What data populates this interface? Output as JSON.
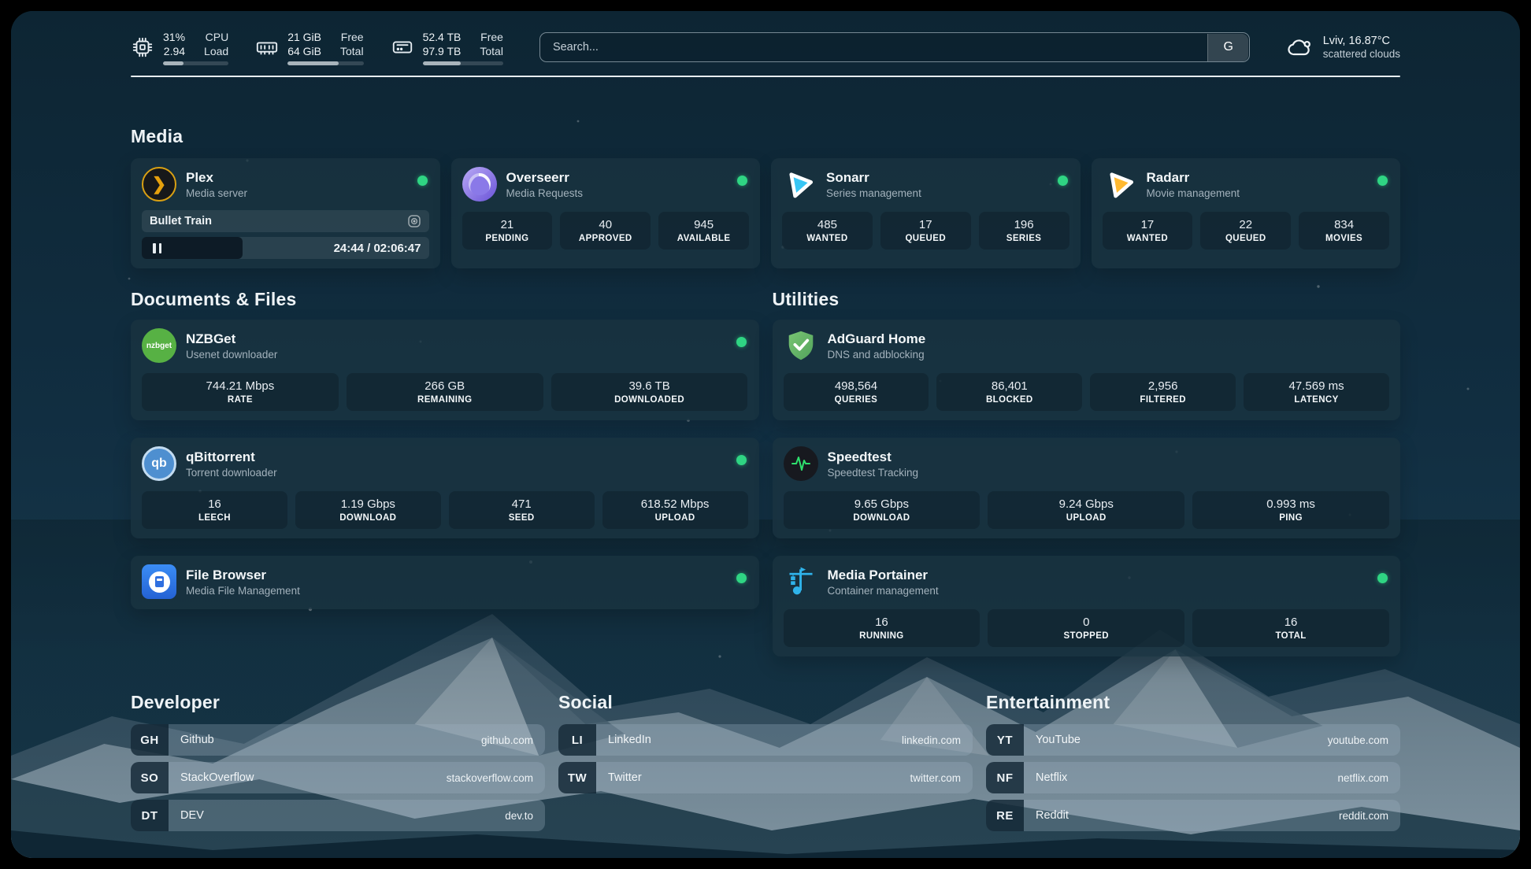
{
  "topbar": {
    "cpu": {
      "percent": "31%",
      "load": "2.94",
      "label_top": "CPU",
      "label_bottom": "Load",
      "progress": 31
    },
    "memory": {
      "free": "21 GiB",
      "total": "64 GiB",
      "label_top": "Free",
      "label_bottom": "Total",
      "progress": 67
    },
    "disk": {
      "free": "52.4 TB",
      "total": "97.9 TB",
      "label_top": "Free",
      "label_bottom": "Total",
      "progress": 47
    },
    "search": {
      "placeholder": "Search...",
      "provider_button": "G"
    },
    "weather": {
      "location_temp": "Lviv, 16.87°C",
      "condition": "scattered clouds"
    }
  },
  "media": {
    "title": "Media",
    "plex": {
      "name": "Plex",
      "description": "Media server",
      "now_playing": "Bullet Train",
      "time": "24:44 / 02:06:47"
    },
    "overseerr": {
      "name": "Overseerr",
      "description": "Media Requests",
      "stats": [
        {
          "value": "21",
          "label": "PENDING"
        },
        {
          "value": "40",
          "label": "APPROVED"
        },
        {
          "value": "945",
          "label": "AVAILABLE"
        }
      ]
    },
    "sonarr": {
      "name": "Sonarr",
      "description": "Series management",
      "stats": [
        {
          "value": "485",
          "label": "WANTED"
        },
        {
          "value": "17",
          "label": "QUEUED"
        },
        {
          "value": "196",
          "label": "SERIES"
        }
      ]
    },
    "radarr": {
      "name": "Radarr",
      "description": "Movie management",
      "stats": [
        {
          "value": "17",
          "label": "WANTED"
        },
        {
          "value": "22",
          "label": "QUEUED"
        },
        {
          "value": "834",
          "label": "MOVIES"
        }
      ]
    }
  },
  "documents": {
    "title": "Documents & Files",
    "nzbget": {
      "name": "NZBGet",
      "description": "Usenet downloader",
      "badge": "nzbget",
      "stats": [
        {
          "value": "744.21 Mbps",
          "label": "RATE"
        },
        {
          "value": "266 GB",
          "label": "REMAINING"
        },
        {
          "value": "39.6 TB",
          "label": "DOWNLOADED"
        }
      ]
    },
    "qbittorrent": {
      "name": "qBittorrent",
      "description": "Torrent downloader",
      "badge": "qb",
      "stats": [
        {
          "value": "16",
          "label": "LEECH"
        },
        {
          "value": "1.19 Gbps",
          "label": "DOWNLOAD"
        },
        {
          "value": "471",
          "label": "SEED"
        },
        {
          "value": "618.52 Mbps",
          "label": "UPLOAD"
        }
      ]
    },
    "filebrowser": {
      "name": "File Browser",
      "description": "Media File Management"
    }
  },
  "utilities": {
    "title": "Utilities",
    "adguard": {
      "name": "AdGuard Home",
      "description": "DNS and adblocking",
      "stats": [
        {
          "value": "498,564",
          "label": "QUERIES"
        },
        {
          "value": "86,401",
          "label": "BLOCKED"
        },
        {
          "value": "2,956",
          "label": "FILTERED"
        },
        {
          "value": "47.569 ms",
          "label": "LATENCY"
        }
      ]
    },
    "speedtest": {
      "name": "Speedtest",
      "description": "Speedtest Tracking",
      "stats": [
        {
          "value": "9.65 Gbps",
          "label": "DOWNLOAD"
        },
        {
          "value": "9.24 Gbps",
          "label": "UPLOAD"
        },
        {
          "value": "0.993 ms",
          "label": "PING"
        }
      ]
    },
    "portainer": {
      "name": "Media Portainer",
      "description": "Container management",
      "stats": [
        {
          "value": "16",
          "label": "RUNNING"
        },
        {
          "value": "0",
          "label": "STOPPED"
        },
        {
          "value": "16",
          "label": "TOTAL"
        }
      ]
    }
  },
  "bookmarks": {
    "developer": {
      "title": "Developer",
      "links": [
        {
          "abbr": "GH",
          "name": "Github",
          "domain": "github.com"
        },
        {
          "abbr": "SO",
          "name": "StackOverflow",
          "domain": "stackoverflow.com"
        },
        {
          "abbr": "DT",
          "name": "DEV",
          "domain": "dev.to"
        }
      ]
    },
    "social": {
      "title": "Social",
      "links": [
        {
          "abbr": "LI",
          "name": "LinkedIn",
          "domain": "linkedin.com"
        },
        {
          "abbr": "TW",
          "name": "Twitter",
          "domain": "twitter.com"
        }
      ]
    },
    "entertainment": {
      "title": "Entertainment",
      "links": [
        {
          "abbr": "YT",
          "name": "YouTube",
          "domain": "youtube.com"
        },
        {
          "abbr": "NF",
          "name": "Netflix",
          "domain": "netflix.com"
        },
        {
          "abbr": "RE",
          "name": "Reddit",
          "domain": "reddit.com"
        }
      ]
    }
  },
  "colors": {
    "status_online": "#2fd583",
    "plex_gold": "#e5a00d",
    "sonarr_blue": "#38c6f4",
    "radarr_yellow": "#ffb931",
    "nzbget_green": "#57b144",
    "qbittorrent_blue": "#4e8fd0",
    "filebrowser_blue": "#2f7fe8",
    "adguard_green": "#67b868",
    "speedtest_green": "#2ee06e",
    "portainer_blue": "#2fb3ea",
    "overseerr_purple": "#7a68dd"
  }
}
